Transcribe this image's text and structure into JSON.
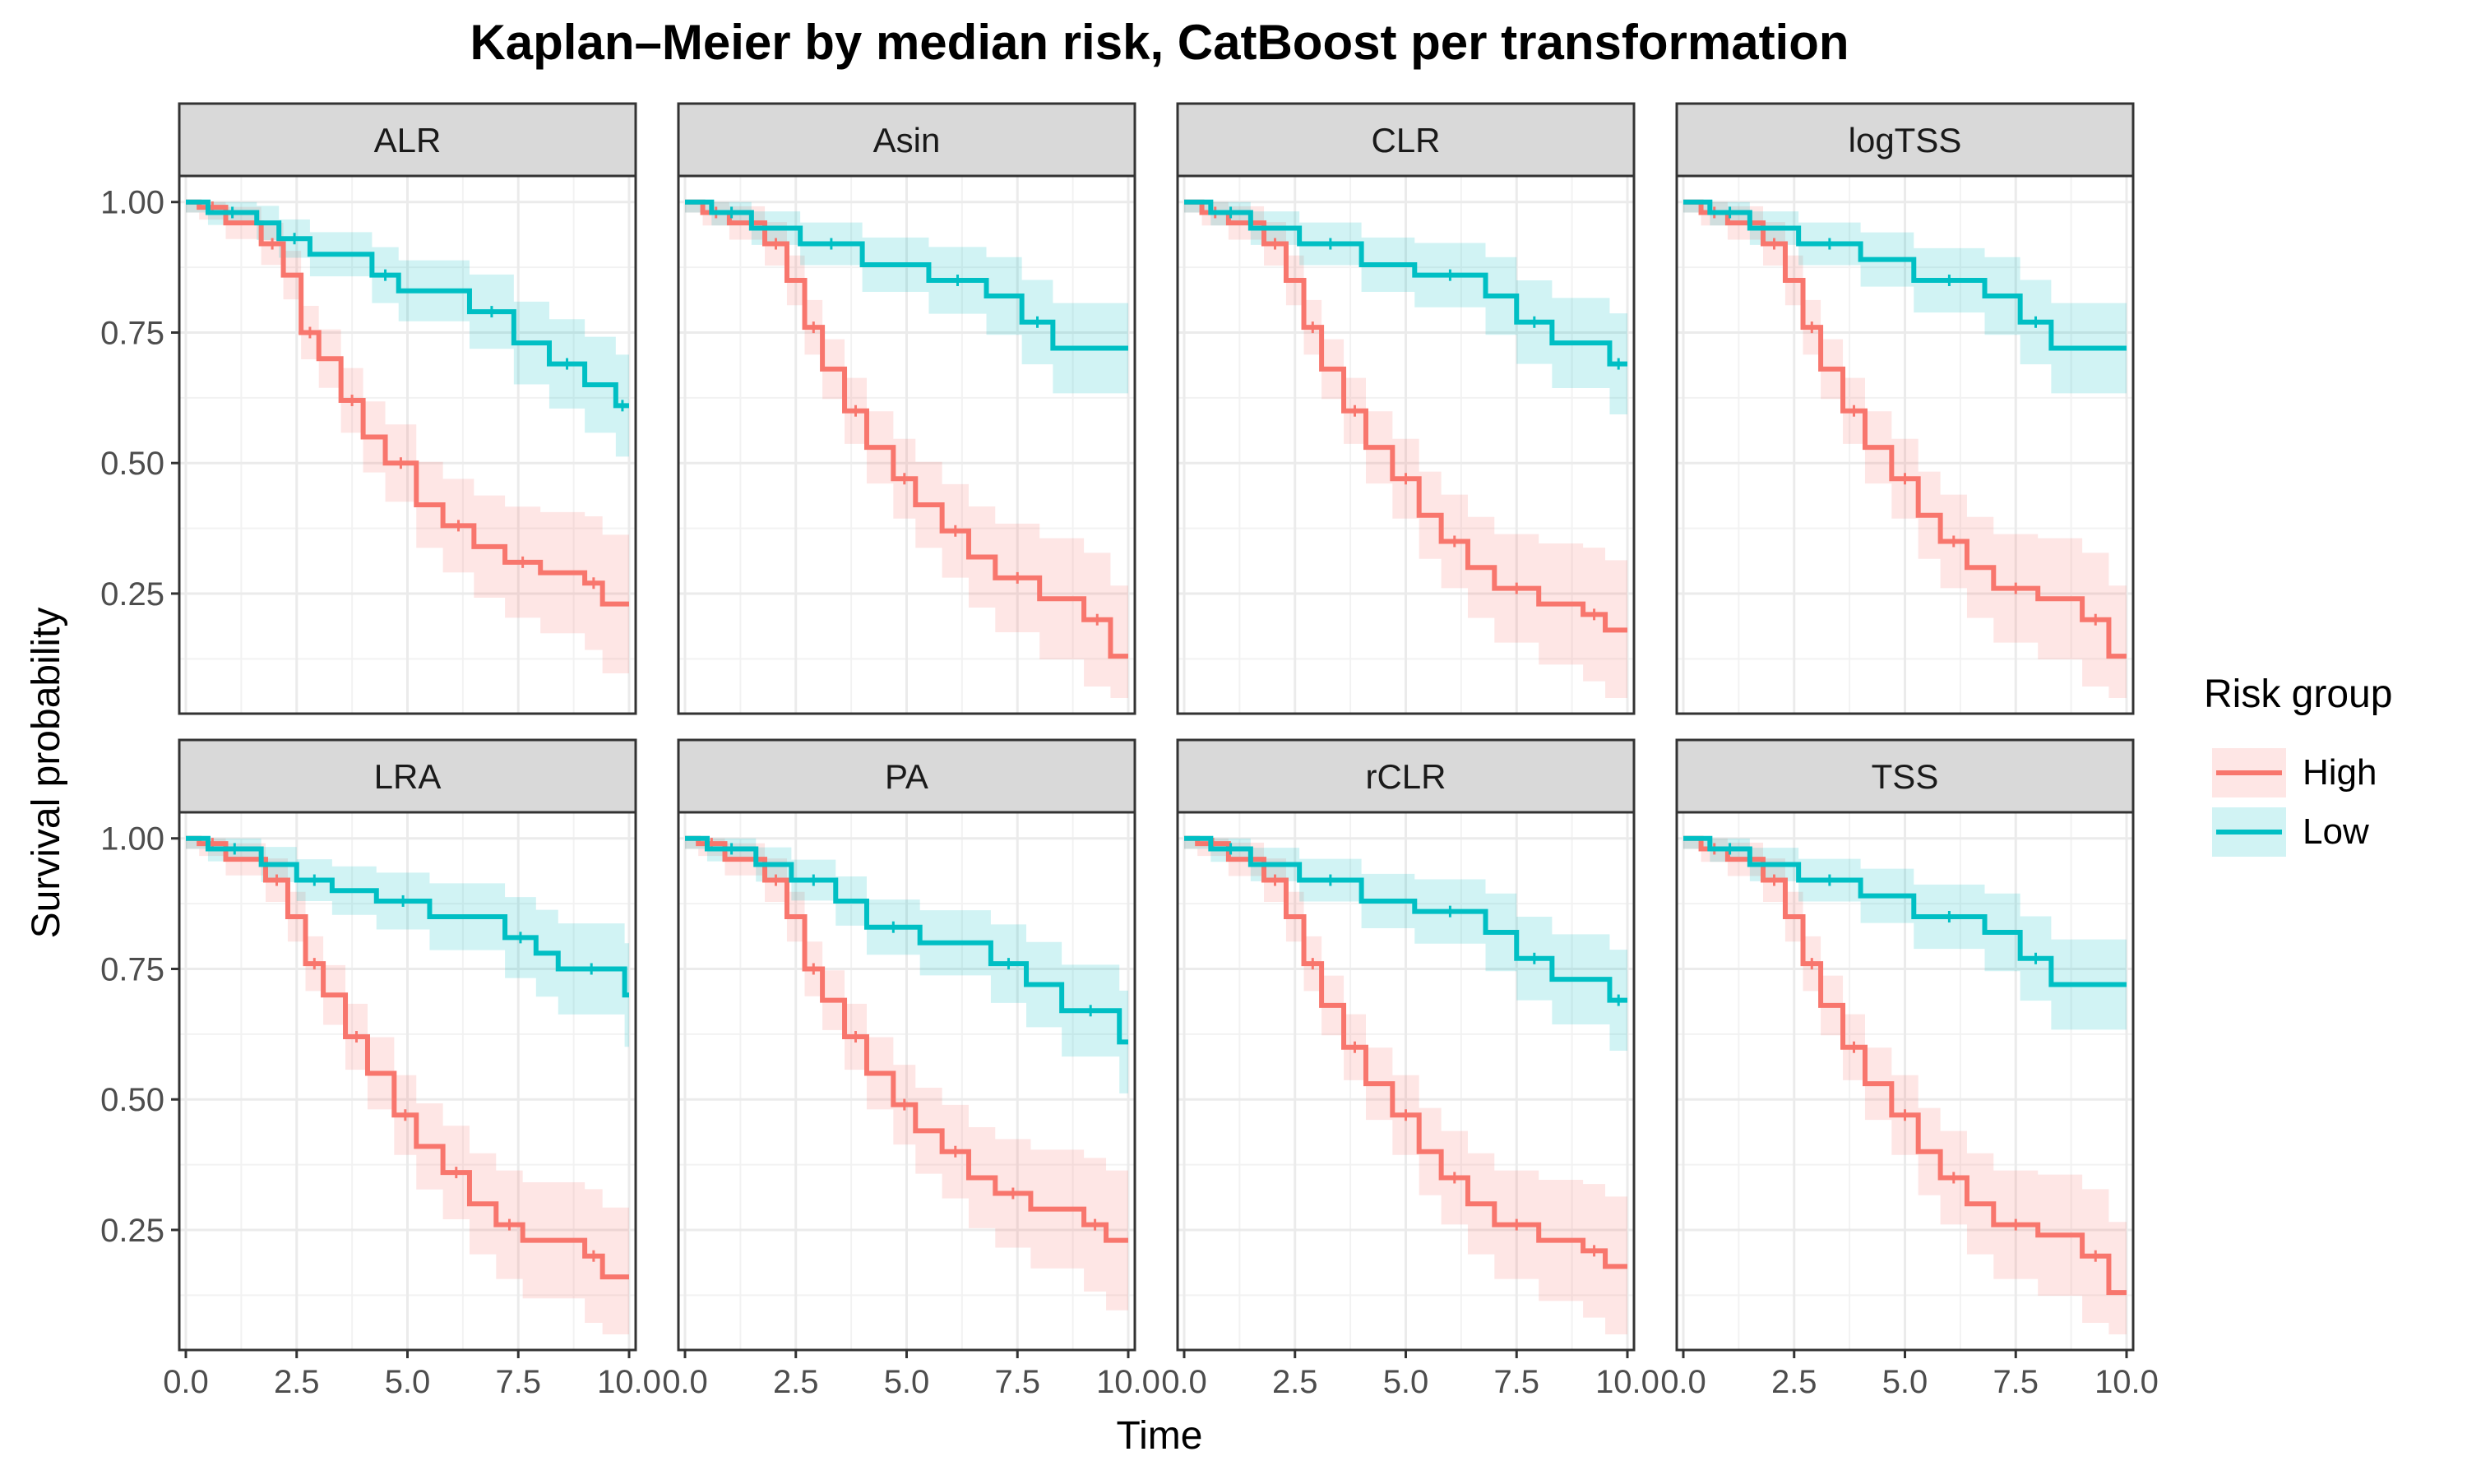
{
  "chart_data": {
    "type": "line",
    "subtype": "kaplan-meier step curves with confidence bands, faceted",
    "title": "Kaplan–Meier by median risk, CatBoost per transformation",
    "xlabel": "Time",
    "ylabel": "Survival probability",
    "xlim": [
      0,
      10
    ],
    "ylim": [
      0.02,
      1.05
    ],
    "x_ticks": [
      0,
      2.5,
      5,
      7.5,
      10
    ],
    "x_tick_labels": [
      "0.0",
      "2.5",
      "5.0",
      "7.5",
      "10.0"
    ],
    "y_ticks": [
      0.25,
      0.5,
      0.75,
      1.0
    ],
    "y_tick_labels": [
      "0.25",
      "0.50",
      "0.75",
      "1.00"
    ],
    "grid": true,
    "legend": {
      "title": "Risk group",
      "placement": "right",
      "entries": [
        {
          "name": "High",
          "color": "#F8766D"
        },
        {
          "name": "Low",
          "color": "#00BFC4"
        }
      ]
    },
    "facets": [
      {
        "label": "ALR",
        "series": [
          {
            "name": "High",
            "color": "#F8766D",
            "x": [
              0,
              0.3,
              0.9,
              1.7,
              2.2,
              2.6,
              3.0,
              3.5,
              4.0,
              4.5,
              5.2,
              5.8,
              6.5,
              7.2,
              8.0,
              9.0,
              9.4,
              10
            ],
            "y": [
              1.0,
              0.99,
              0.96,
              0.92,
              0.86,
              0.75,
              0.7,
              0.62,
              0.55,
              0.5,
              0.42,
              0.38,
              0.34,
              0.31,
              0.29,
              0.27,
              0.23,
              0.23
            ]
          },
          {
            "name": "Low",
            "color": "#00BFC4",
            "x": [
              0,
              0.5,
              1.6,
              2.1,
              2.8,
              4.2,
              4.8,
              6.4,
              7.4,
              8.2,
              9.0,
              9.7,
              10
            ],
            "y": [
              1.0,
              0.98,
              0.96,
              0.93,
              0.9,
              0.86,
              0.83,
              0.79,
              0.73,
              0.69,
              0.65,
              0.61,
              0.61
            ]
          }
        ]
      },
      {
        "label": "Asin",
        "series": [
          {
            "name": "High",
            "color": "#F8766D",
            "x": [
              0,
              0.4,
              1.0,
              1.8,
              2.3,
              2.7,
              3.1,
              3.6,
              4.1,
              4.7,
              5.2,
              5.8,
              6.4,
              7.0,
              8.0,
              9.0,
              9.6,
              10
            ],
            "y": [
              1.0,
              0.98,
              0.96,
              0.92,
              0.85,
              0.76,
              0.68,
              0.6,
              0.53,
              0.47,
              0.42,
              0.37,
              0.32,
              0.28,
              0.24,
              0.2,
              0.13,
              0.13
            ]
          },
          {
            "name": "Low",
            "color": "#00BFC4",
            "x": [
              0,
              0.6,
              1.5,
              2.6,
              4.0,
              5.5,
              6.8,
              7.6,
              8.3,
              10
            ],
            "y": [
              1.0,
              0.98,
              0.95,
              0.92,
              0.88,
              0.85,
              0.82,
              0.77,
              0.72,
              0.72
            ]
          }
        ]
      },
      {
        "label": "CLR",
        "series": [
          {
            "name": "High",
            "color": "#F8766D",
            "x": [
              0,
              0.4,
              1.0,
              1.8,
              2.3,
              2.7,
              3.1,
              3.6,
              4.1,
              4.7,
              5.3,
              5.8,
              6.4,
              7.0,
              8.0,
              9.0,
              9.5,
              10
            ],
            "y": [
              1.0,
              0.98,
              0.96,
              0.92,
              0.85,
              0.76,
              0.68,
              0.6,
              0.53,
              0.47,
              0.4,
              0.35,
              0.3,
              0.26,
              0.23,
              0.21,
              0.18,
              0.18
            ]
          },
          {
            "name": "Low",
            "color": "#00BFC4",
            "x": [
              0,
              0.6,
              1.5,
              2.6,
              4.0,
              5.2,
              6.8,
              7.5,
              8.3,
              9.6,
              10
            ],
            "y": [
              1.0,
              0.98,
              0.95,
              0.92,
              0.88,
              0.86,
              0.82,
              0.77,
              0.73,
              0.69,
              0.69
            ]
          }
        ]
      },
      {
        "label": "logTSS",
        "series": [
          {
            "name": "High",
            "color": "#F8766D",
            "x": [
              0,
              0.4,
              1.0,
              1.8,
              2.3,
              2.7,
              3.1,
              3.6,
              4.1,
              4.7,
              5.3,
              5.8,
              6.4,
              7.0,
              8.0,
              9.0,
              9.6,
              10
            ],
            "y": [
              1.0,
              0.98,
              0.96,
              0.92,
              0.85,
              0.76,
              0.68,
              0.6,
              0.53,
              0.47,
              0.4,
              0.35,
              0.3,
              0.26,
              0.24,
              0.2,
              0.13,
              0.13
            ]
          },
          {
            "name": "Low",
            "color": "#00BFC4",
            "x": [
              0,
              0.6,
              1.5,
              2.6,
              4.0,
              5.2,
              6.8,
              7.6,
              8.3,
              10
            ],
            "y": [
              1.0,
              0.98,
              0.95,
              0.92,
              0.89,
              0.85,
              0.82,
              0.77,
              0.72,
              0.72
            ]
          }
        ]
      },
      {
        "label": "LRA",
        "series": [
          {
            "name": "High",
            "color": "#F8766D",
            "x": [
              0,
              0.3,
              0.9,
              1.8,
              2.3,
              2.7,
              3.1,
              3.6,
              4.1,
              4.7,
              5.2,
              5.8,
              6.4,
              7.0,
              7.6,
              9.0,
              9.4,
              10
            ],
            "y": [
              1.0,
              0.99,
              0.96,
              0.92,
              0.85,
              0.76,
              0.7,
              0.62,
              0.55,
              0.47,
              0.41,
              0.36,
              0.3,
              0.26,
              0.23,
              0.2,
              0.16,
              0.16
            ]
          },
          {
            "name": "Low",
            "color": "#00BFC4",
            "x": [
              0,
              0.5,
              1.7,
              2.5,
              3.3,
              4.3,
              5.5,
              7.2,
              7.9,
              8.4,
              9.9,
              10
            ],
            "y": [
              1.0,
              0.98,
              0.95,
              0.92,
              0.9,
              0.88,
              0.85,
              0.81,
              0.78,
              0.75,
              0.7,
              0.7
            ]
          }
        ]
      },
      {
        "label": "PA",
        "series": [
          {
            "name": "High",
            "color": "#F8766D",
            "x": [
              0,
              0.3,
              0.9,
              1.8,
              2.3,
              2.7,
              3.1,
              3.6,
              4.1,
              4.7,
              5.2,
              5.8,
              6.4,
              7.0,
              7.8,
              9.0,
              9.5,
              10
            ],
            "y": [
              1.0,
              0.99,
              0.96,
              0.92,
              0.85,
              0.75,
              0.69,
              0.62,
              0.55,
              0.49,
              0.44,
              0.4,
              0.35,
              0.32,
              0.29,
              0.26,
              0.23,
              0.23
            ]
          },
          {
            "name": "Low",
            "color": "#00BFC4",
            "x": [
              0,
              0.5,
              1.6,
              2.4,
              3.4,
              4.1,
              5.3,
              6.9,
              7.7,
              8.5,
              9.8,
              10
            ],
            "y": [
              1.0,
              0.98,
              0.95,
              0.92,
              0.88,
              0.83,
              0.8,
              0.76,
              0.72,
              0.67,
              0.61,
              0.61
            ]
          }
        ]
      },
      {
        "label": "rCLR",
        "series": [
          {
            "name": "High",
            "color": "#F8766D",
            "x": [
              0,
              0.3,
              1.0,
              1.8,
              2.3,
              2.7,
              3.1,
              3.6,
              4.1,
              4.7,
              5.3,
              5.8,
              6.4,
              7.0,
              8.0,
              9.0,
              9.5,
              10
            ],
            "y": [
              1.0,
              0.99,
              0.96,
              0.92,
              0.85,
              0.76,
              0.68,
              0.6,
              0.53,
              0.47,
              0.4,
              0.35,
              0.3,
              0.26,
              0.23,
              0.21,
              0.18,
              0.18
            ]
          },
          {
            "name": "Low",
            "color": "#00BFC4",
            "x": [
              0,
              0.6,
              1.5,
              2.6,
              4.0,
              5.2,
              6.8,
              7.5,
              8.3,
              9.6,
              10
            ],
            "y": [
              1.0,
              0.98,
              0.95,
              0.92,
              0.88,
              0.86,
              0.82,
              0.77,
              0.73,
              0.69,
              0.69
            ]
          }
        ]
      },
      {
        "label": "TSS",
        "series": [
          {
            "name": "High",
            "color": "#F8766D",
            "x": [
              0,
              0.4,
              1.0,
              1.8,
              2.3,
              2.7,
              3.1,
              3.6,
              4.1,
              4.7,
              5.3,
              5.8,
              6.4,
              7.0,
              8.0,
              9.0,
              9.6,
              10
            ],
            "y": [
              1.0,
              0.98,
              0.96,
              0.92,
              0.85,
              0.76,
              0.68,
              0.6,
              0.53,
              0.47,
              0.4,
              0.35,
              0.3,
              0.26,
              0.24,
              0.2,
              0.13,
              0.13
            ]
          },
          {
            "name": "Low",
            "color": "#00BFC4",
            "x": [
              0,
              0.6,
              1.5,
              2.6,
              4.0,
              5.2,
              6.8,
              7.6,
              8.3,
              10
            ],
            "y": [
              1.0,
              0.98,
              0.95,
              0.92,
              0.89,
              0.85,
              0.82,
              0.77,
              0.72,
              0.72
            ]
          }
        ]
      }
    ]
  }
}
